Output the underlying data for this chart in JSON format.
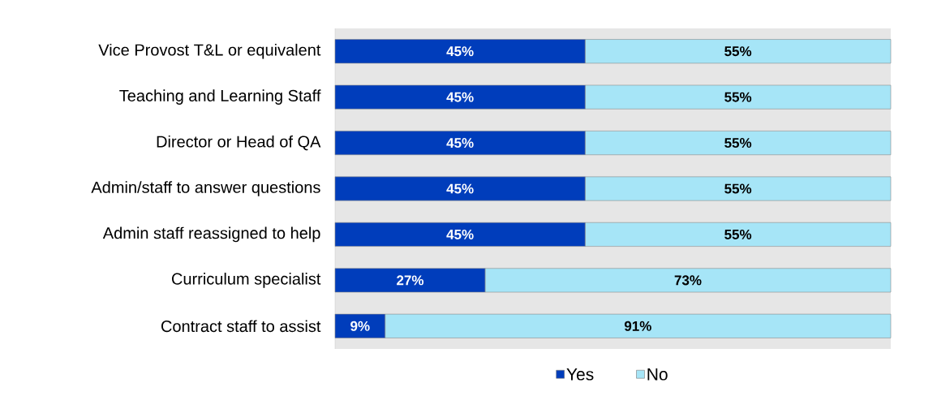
{
  "chart_data": {
    "type": "bar",
    "orientation": "horizontal",
    "stacked": true,
    "categories": [
      "Vice Provost T&L or equivalent",
      "Teaching and Learning Staff",
      "Director or Head of QA",
      "Admin/staff to answer questions",
      "Admin staff reassigned to help",
      "Curriculum specialist",
      "Contract staff to assist"
    ],
    "series": [
      {
        "name": "Yes",
        "color": "#003dbb",
        "values": [
          45,
          45,
          45,
          45,
          45,
          27,
          9
        ],
        "value_labels": [
          "45%",
          "45%",
          "45%",
          "45%",
          "45%",
          "27%",
          "9%"
        ]
      },
      {
        "name": "No",
        "color": "#a6e5f7",
        "values": [
          55,
          55,
          55,
          55,
          55,
          73,
          91
        ],
        "value_labels": [
          "55%",
          "55%",
          "55%",
          "55%",
          "55%",
          "73%",
          "91%"
        ]
      }
    ],
    "legend": "bottom"
  }
}
